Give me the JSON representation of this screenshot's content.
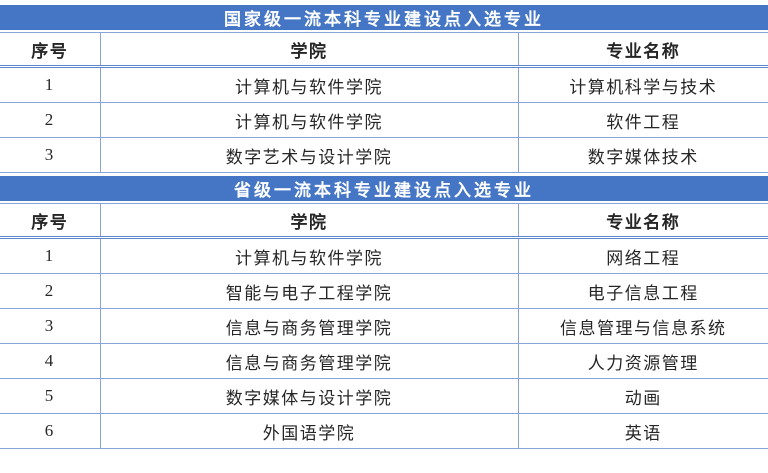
{
  "colors": {
    "banner_background": "#4576C6",
    "banner_text": "#FFFFFF",
    "grid_line": "#87A5DB",
    "header_rule": "#5D87CD",
    "cell_text": "#262626",
    "page_background": "#FFFFFF"
  },
  "sections": [
    {
      "title": "国家级一流本科专业建设点入选专业",
      "columns": [
        "序号",
        "学院",
        "专业名称"
      ],
      "rows": [
        [
          "1",
          "计算机与软件学院",
          "计算机科学与技术"
        ],
        [
          "2",
          "计算机与软件学院",
          "软件工程"
        ],
        [
          "3",
          "数字艺术与设计学院",
          "数字媒体技术"
        ]
      ]
    },
    {
      "title": "省级一流本科专业建设点入选专业",
      "columns": [
        "序号",
        "学院",
        "专业名称"
      ],
      "rows": [
        [
          "1",
          "计算机与软件学院",
          "网络工程"
        ],
        [
          "2",
          "智能与电子工程学院",
          "电子信息工程"
        ],
        [
          "3",
          "信息与商务管理学院",
          "信息管理与信息系统"
        ],
        [
          "4",
          "信息与商务管理学院",
          "人力资源管理"
        ],
        [
          "5",
          "数字媒体与设计学院",
          "动画"
        ],
        [
          "6",
          "外国语学院",
          "英语"
        ]
      ]
    }
  ]
}
